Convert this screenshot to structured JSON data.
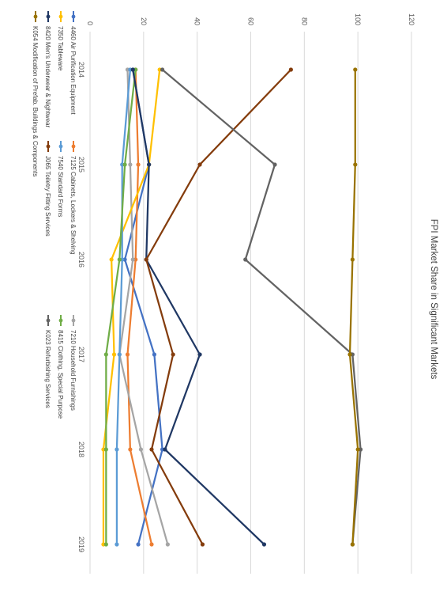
{
  "chart_data": {
    "type": "line",
    "title": "FPI Market Share in Significant Markets",
    "xlabel": "",
    "ylabel": "",
    "categories": [
      "2014",
      "2015",
      "2016",
      "2017",
      "2018",
      "2019"
    ],
    "ylim": [
      0,
      120
    ],
    "yticks": [
      "0",
      "20",
      "40",
      "60",
      "80",
      "100",
      "120"
    ],
    "grid": true,
    "legend_position": "bottom",
    "series": [
      {
        "name": "4460 Air Purification Equipment",
        "color": "#4472C4",
        "values": [
          16,
          22,
          13,
          24,
          27,
          18
        ]
      },
      {
        "name": "7125 Cabinets, Lockers & Shelving",
        "color": "#ED7D31",
        "values": [
          17,
          18,
          17,
          14,
          15,
          23
        ]
      },
      {
        "name": "7210 Household Furnishings",
        "color": "#A5A5A5",
        "values": [
          14,
          15,
          16,
          11,
          19,
          29
        ]
      },
      {
        "name": "7350 Tableware",
        "color": "#FFC000",
        "values": [
          26,
          22,
          8,
          9,
          5,
          5
        ]
      },
      {
        "name": "7540 Standard Forms",
        "color": "#5B9BD5",
        "values": [
          15,
          12,
          12,
          11,
          10,
          10
        ]
      },
      {
        "name": "8415 Clothing, Special Purpose",
        "color": "#70AD47",
        "values": [
          17,
          13,
          11,
          6,
          6,
          6
        ]
      },
      {
        "name": "8420 Men's Underwear & Nightwear",
        "color": "#203864",
        "values": [
          16,
          22,
          21,
          41,
          28,
          65
        ]
      },
      {
        "name": "J065 Toiletry Fitting Services",
        "color": "#843C0C",
        "values": [
          75,
          41,
          21,
          31,
          23,
          42
        ]
      },
      {
        "name": "K023 Refurbishing Services",
        "color": "#636363",
        "values": [
          27,
          69,
          58,
          98,
          101,
          98
        ]
      },
      {
        "name": "K054 Modification of Prefab. Buildings & Components",
        "color": "#997300",
        "values": [
          99,
          99,
          98,
          97,
          100,
          98
        ]
      }
    ]
  }
}
